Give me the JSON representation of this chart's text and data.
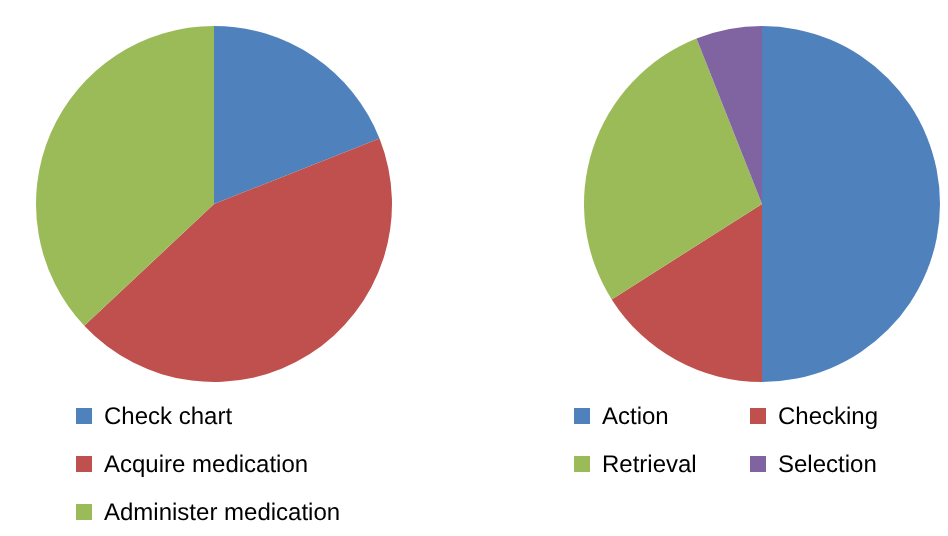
{
  "chart_data": [
    {
      "type": "pie",
      "categories": [
        "Check chart",
        "Acquire medication",
        "Administer medication"
      ],
      "values": [
        19,
        44,
        37
      ],
      "colors": [
        "#4f81bd",
        "#c0504d",
        "#9bbb59"
      ],
      "legend": "bottom left"
    },
    {
      "type": "pie",
      "categories": [
        "Action",
        "Checking",
        "Retrieval",
        "Selection"
      ],
      "values": [
        50,
        16,
        28,
        6
      ],
      "colors": [
        "#4f81bd",
        "#c0504d",
        "#9bbb59",
        "#8064a2"
      ],
      "legend": "bottom"
    }
  ]
}
